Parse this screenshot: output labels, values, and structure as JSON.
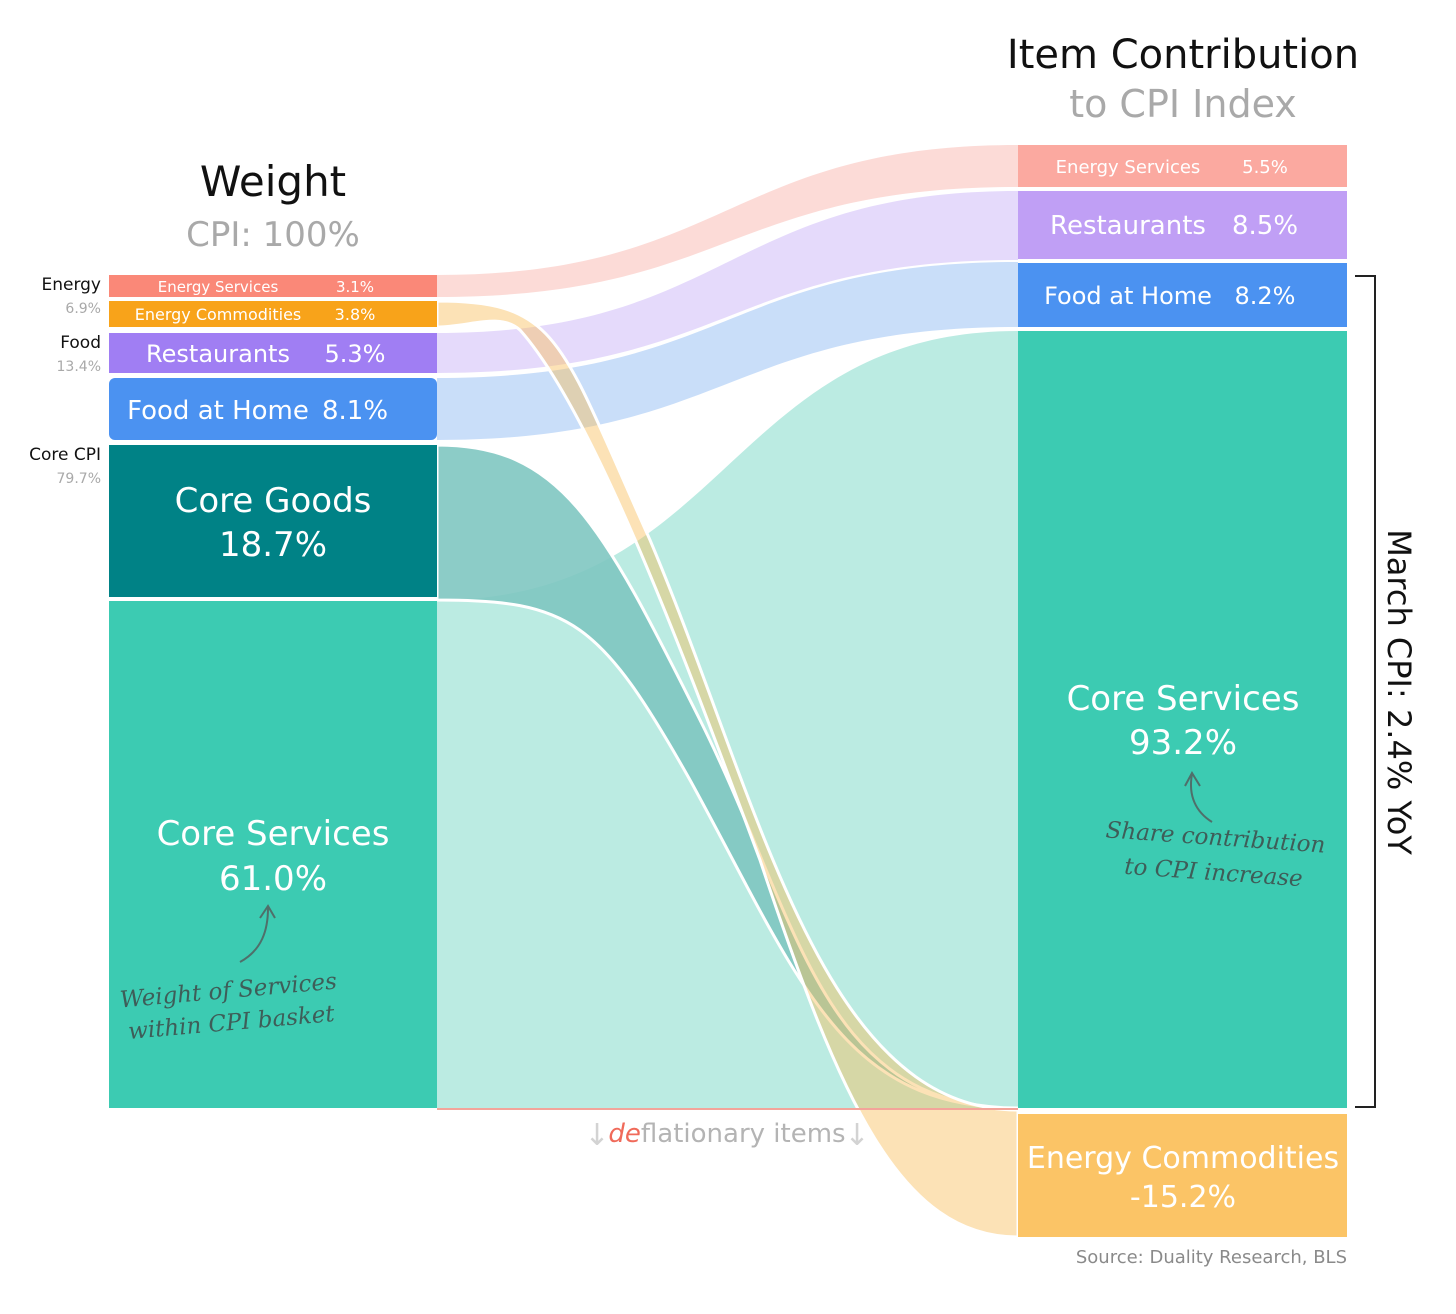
{
  "chart_data": {
    "type": "sankey",
    "left_title": "Weight",
    "left_subtitle": "CPI: 100%",
    "right_title": "Item Contribution",
    "right_subtitle": "to CPI Index",
    "bracket_label": "March CPI:  2.4% YoY",
    "deflation_note": {
      "prefix": "de",
      "rest": "flationary items"
    },
    "source": "Source: Duality Research, BLS",
    "groups": [
      {
        "name": "Energy",
        "value": "6.9%"
      },
      {
        "name": "Food",
        "value": "13.4%"
      },
      {
        "name": "Core CPI",
        "value": "79.7%"
      }
    ],
    "weights": [
      {
        "name": "Energy Services",
        "value": 3.1,
        "label": "3.1%"
      },
      {
        "name": "Energy Commodities",
        "value": 3.8,
        "label": "3.8%"
      },
      {
        "name": "Restaurants",
        "value": 5.3,
        "label": "5.3%"
      },
      {
        "name": "Food at Home",
        "value": 8.1,
        "label": "8.1%"
      },
      {
        "name": "Core Goods",
        "value": 18.7,
        "label": "18.7%"
      },
      {
        "name": "Core Services",
        "value": 61.0,
        "label": "61.0%"
      }
    ],
    "contributions": [
      {
        "name": "Energy Services",
        "value": 5.5,
        "label": "5.5%"
      },
      {
        "name": "Restaurants",
        "value": 8.5,
        "label": "8.5%"
      },
      {
        "name": "Food at Home",
        "value": 8.2,
        "label": "8.2%"
      },
      {
        "name": "Core Services",
        "value": 93.2,
        "label": "93.2%"
      },
      {
        "name": "Energy Commodities",
        "value": -15.2,
        "label": "-15.2%"
      }
    ],
    "annotations": [
      {
        "line1": "Weight of Services",
        "line2": "within CPI basket"
      },
      {
        "line1": "Share contribution",
        "line2": "to CPI increase"
      }
    ],
    "colors": {
      "energy_services": "#fa8878",
      "energy_commodities": "#f8a31a",
      "restaurants": "#a07ef3",
      "food_at_home": "#4b92f1",
      "core_goods": "#008286",
      "core_services": "#3ccbb2",
      "energy_services_right": "#fba9a0",
      "restaurants_right": "#c09ff5",
      "energy_commodities_right": "#fbc466",
      "deflation_red": "#f06a5a"
    }
  }
}
